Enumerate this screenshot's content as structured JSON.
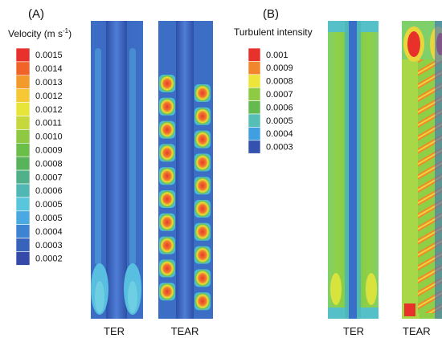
{
  "panel_a": {
    "label": "(A)",
    "legend_title": "Velocity (m s",
    "legend_title_sup": "-1",
    "legend_title_end": ")",
    "legend_values": [
      "0.0015",
      "0.0014",
      "0.0013",
      "0.0012",
      "0.0012",
      "0.0011",
      "0.0010",
      "0.0009",
      "0.0008",
      "0.0007",
      "0.0006",
      "0.0005",
      "0.0005",
      "0.0004",
      "0.0003",
      "0.0002"
    ],
    "legend_colors": [
      "#e8312a",
      "#f0642a",
      "#f39a2c",
      "#f6c835",
      "#e8e53a",
      "#c6d83c",
      "#8fc944",
      "#6cbe4a",
      "#58b35a",
      "#4fb08a",
      "#51b7b4",
      "#5ac6dc",
      "#4aa9e0",
      "#3d83d2",
      "#3763bb",
      "#3449a8"
    ],
    "columns": [
      {
        "caption": "TER"
      },
      {
        "caption": "TEAR"
      }
    ]
  },
  "panel_b": {
    "label": "(B)",
    "legend_title": "Turbulent intensity",
    "legend_values": [
      "0.001",
      "0.0009",
      "0.0008",
      "0.0007",
      "0.0006",
      "0.0005",
      "0.0004",
      "0.0003"
    ],
    "legend_colors": [
      "#e8312a",
      "#f2862c",
      "#ede53a",
      "#8fca45",
      "#64b94f",
      "#55bfb6",
      "#3f9fe0",
      "#3451b0"
    ],
    "columns": [
      {
        "caption": "TER"
      },
      {
        "caption": "TEAR"
      }
    ]
  }
}
